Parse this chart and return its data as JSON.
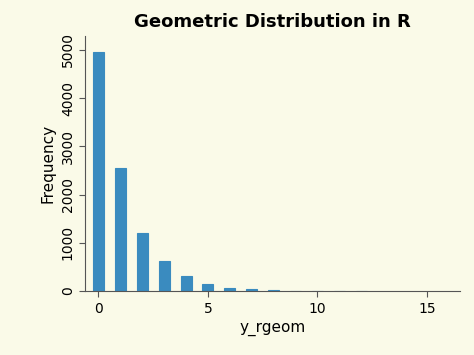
{
  "title": "Geometric Distribution in R",
  "xlabel": "y_rgeom",
  "ylabel": "Frequency",
  "background_color": "#FAFAE8",
  "bar_color": "#3A8BBF",
  "bar_edge_color": "#3A8BBF",
  "bar_positions": [
    0,
    1,
    2,
    3,
    4,
    5,
    6,
    7,
    8,
    9,
    10,
    11,
    12
  ],
  "bar_heights": [
    4950,
    2550,
    1200,
    620,
    310,
    150,
    70,
    45,
    20,
    10,
    5,
    3,
    1
  ],
  "xlim": [
    -0.6,
    16.5
  ],
  "ylim": [
    0,
    5300
  ],
  "xticks": [
    0,
    5,
    10,
    15
  ],
  "yticks": [
    0,
    1000,
    2000,
    3000,
    4000,
    5000
  ],
  "bar_width": 0.5,
  "title_fontsize": 13,
  "axis_fontsize": 11,
  "tick_fontsize": 10
}
